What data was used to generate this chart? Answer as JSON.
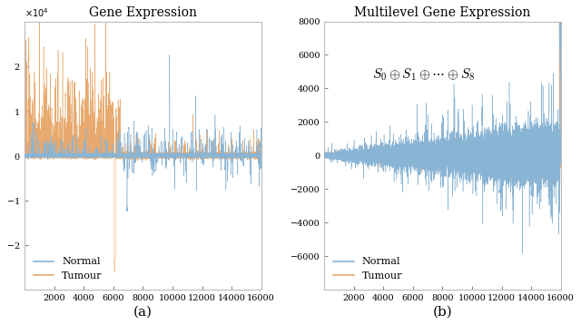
{
  "title_left": "Gene Expression",
  "title_right": "Multilevel Gene Expression",
  "label_a": "(a)",
  "label_b": "(b)",
  "legend_normal": "Normal",
  "legend_tumour": "Tumour",
  "color_normal": "#8ab4d4",
  "color_tumour": "#e8a96e",
  "annotation": "$S_0 \\oplus S_1 \\oplus \\cdots \\oplus S_8$",
  "n_points": 16000,
  "xlim": [
    1,
    16000
  ],
  "xticks": [
    2000,
    4000,
    6000,
    8000,
    10000,
    12000,
    14000,
    16000
  ],
  "ylim_left": [
    -30000,
    30000
  ],
  "yticks_left": [
    -20000,
    -10000,
    0,
    10000,
    20000
  ],
  "ylim_right": [
    -8000,
    8000
  ],
  "yticks_right": [
    -6000,
    -4000,
    -2000,
    0,
    2000,
    4000,
    6000,
    8000
  ],
  "seed": 42,
  "linewidth": 0.35,
  "background_color": "#ffffff"
}
